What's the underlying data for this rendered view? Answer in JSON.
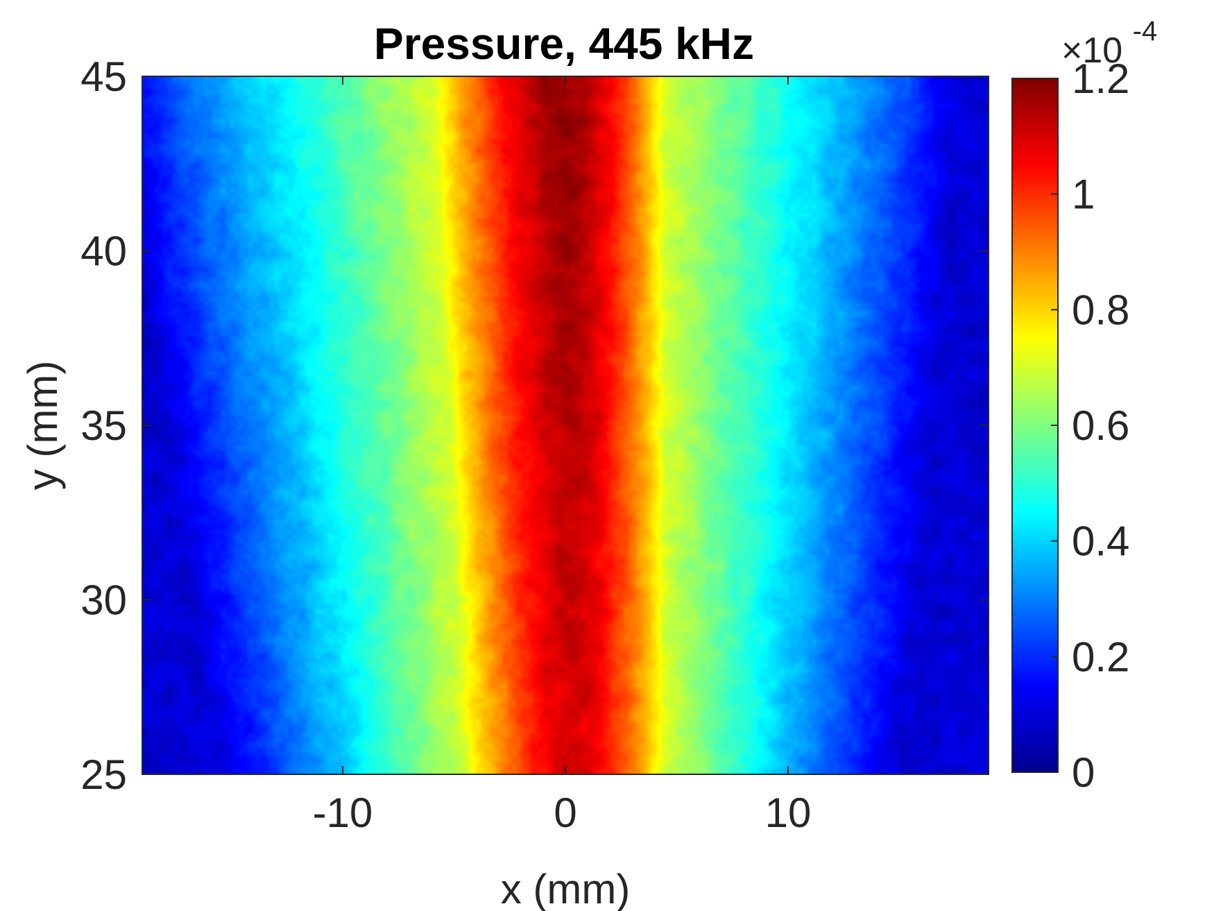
{
  "chart_data": {
    "type": "heatmap",
    "title": "Pressure, 445 kHz",
    "xlabel": "x (mm)",
    "ylabel": "y (mm)",
    "xlim": [
      -19,
      19
    ],
    "ylim": [
      25,
      45
    ],
    "xticks": [
      -10,
      0,
      10
    ],
    "yticks": [
      25,
      30,
      35,
      40,
      45
    ],
    "colormap": "jet",
    "colorbar": {
      "min": 0,
      "max": 1.2,
      "ticks": [
        0,
        0.2,
        0.4,
        0.6,
        0.8,
        1,
        1.2
      ],
      "tick_labels": [
        "0",
        "0.2",
        "0.4",
        "0.6",
        "0.8",
        "1",
        "1.2"
      ],
      "multiplier": "×10",
      "exponent": "-4",
      "placement": "right"
    },
    "field": {
      "description_values": "pressure amplitude in units of 1e-4, peak near x=0 mm at the top",
      "peak_value": 1.18,
      "background_value": 0.1,
      "center_x_at_y": [
        {
          "y": 25,
          "x": 0.5
        },
        {
          "y": 35,
          "x": 0.2
        },
        {
          "y": 45,
          "x": 0.0
        }
      ],
      "band_edges_at_y": [
        {
          "y": 25,
          "level": 0.3,
          "x_left": -11.5,
          "x_right": 11.0
        },
        {
          "y": 45,
          "level": 0.3,
          "x_left": -16.5,
          "x_right": 14.0
        },
        {
          "y": 25,
          "level": 0.7,
          "x_left": -4.5,
          "x_right": 4.5
        },
        {
          "y": 45,
          "level": 0.7,
          "x_left": -6.0,
          "x_right": 4.5
        }
      ]
    }
  }
}
